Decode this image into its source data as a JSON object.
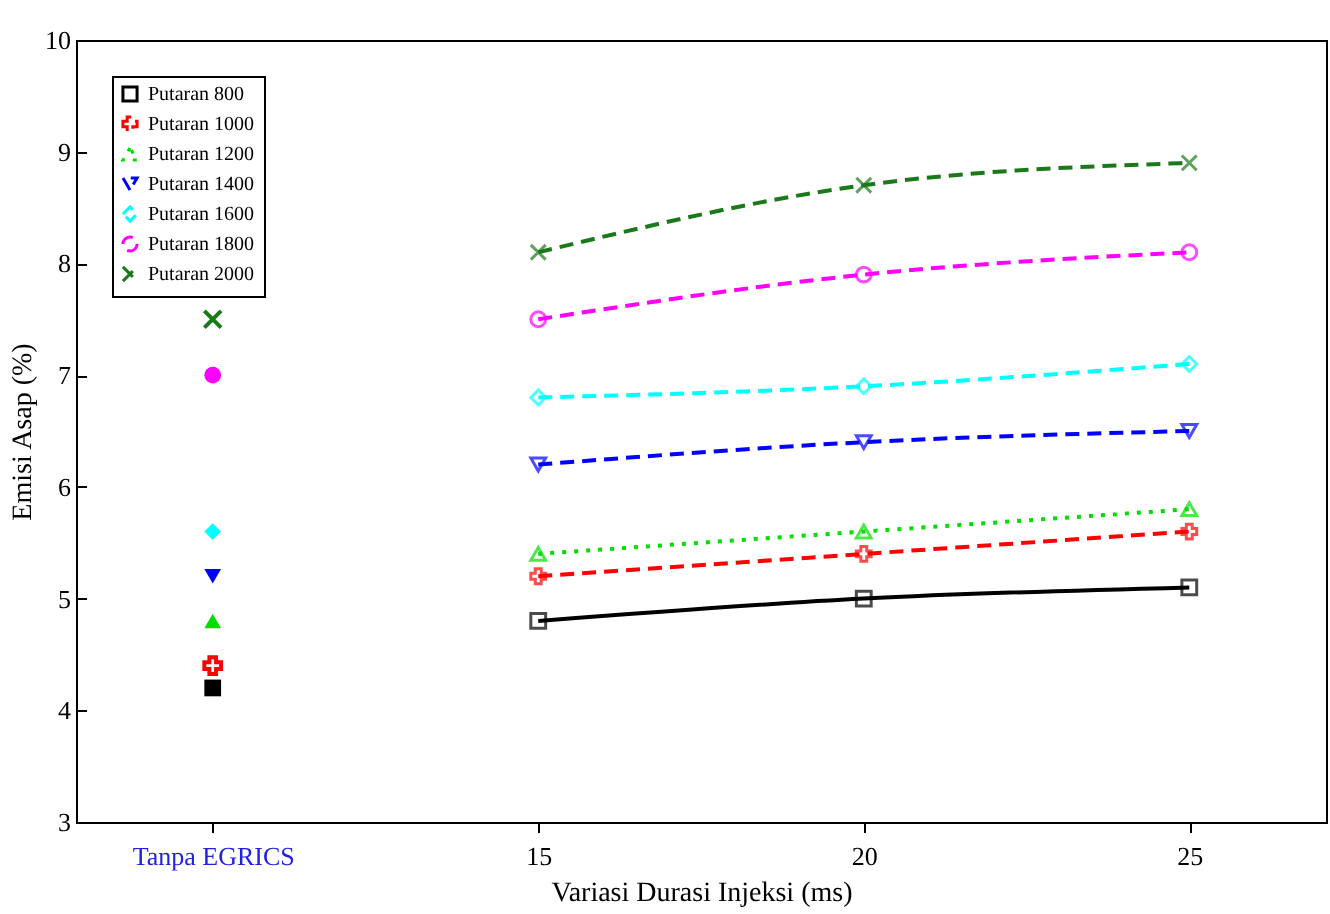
{
  "chart_data": {
    "type": "line",
    "xlabel": "Variasi Durasi Injeksi (ms)",
    "ylabel": "Emisi Asap (%)",
    "categories": [
      "Tanpa EGRICS",
      "15",
      "20",
      "25"
    ],
    "ylim": [
      3,
      10
    ],
    "yticks": [
      3,
      4,
      5,
      6,
      7,
      8,
      9,
      10
    ],
    "grid": false,
    "legend": "top left",
    "series": [
      {
        "name": "Putaran 800",
        "color": "#000000",
        "marker": "square",
        "line_style": "solid",
        "values": [
          null,
          4.8,
          5.0,
          5.1
        ]
      },
      {
        "name": "Putaran 1000",
        "color": "#ff0000",
        "marker": "cross",
        "line_style": "dashed",
        "values": [
          null,
          5.2,
          5.4,
          5.6
        ]
      },
      {
        "name": "Putaran 1200",
        "color": "#00dd00",
        "marker": "triangle",
        "line_style": "dotted",
        "values": [
          null,
          5.4,
          5.6,
          5.8
        ]
      },
      {
        "name": "Putaran 1400",
        "color": "#0000ff",
        "marker": "triangle-down",
        "line_style": "dashed",
        "values": [
          null,
          6.2,
          6.4,
          6.5
        ]
      },
      {
        "name": "Putaran 1600",
        "color": "#00ffff",
        "marker": "diamond",
        "line_style": "dashed",
        "values": [
          null,
          6.8,
          6.9,
          7.1
        ]
      },
      {
        "name": "Putaran 1800",
        "color": "#ff00ff",
        "marker": "circle",
        "line_style": "dashed",
        "values": [
          null,
          7.5,
          7.9,
          8.1
        ]
      },
      {
        "name": "Putaran 2000",
        "color": "#1a7a1a",
        "marker": "x",
        "line_style": "dashed",
        "values": [
          null,
          8.1,
          8.7,
          8.9
        ]
      },
      {
        "type": "scatter",
        "color": "#000000",
        "marker": "square",
        "x": [
          "Tanpa EGRICS"
        ],
        "values": [
          4.2
        ]
      },
      {
        "type": "scatter",
        "color": "#ff0000",
        "marker": "cross",
        "x": [
          "Tanpa EGRICS"
        ],
        "values": [
          4.4
        ]
      },
      {
        "type": "scatter",
        "color": "#00dd00",
        "marker": "triangle",
        "x": [
          "Tanpa EGRICS"
        ],
        "values": [
          4.8
        ]
      },
      {
        "type": "scatter",
        "color": "#0000ff",
        "marker": "triangle-down",
        "x": [
          "Tanpa EGRICS"
        ],
        "values": [
          5.2
        ]
      },
      {
        "type": "scatter",
        "color": "#00ffff",
        "marker": "diamond",
        "x": [
          "Tanpa EGRICS"
        ],
        "values": [
          5.6
        ]
      },
      {
        "type": "scatter",
        "color": "#ff00ff",
        "marker": "circle",
        "x": [
          "Tanpa EGRICS"
        ],
        "values": [
          7.0
        ]
      },
      {
        "type": "scatter",
        "color": "#1a7a1a",
        "marker": "x",
        "x": [
          "Tanpa EGRICS"
        ],
        "values": [
          7.5
        ]
      }
    ]
  }
}
